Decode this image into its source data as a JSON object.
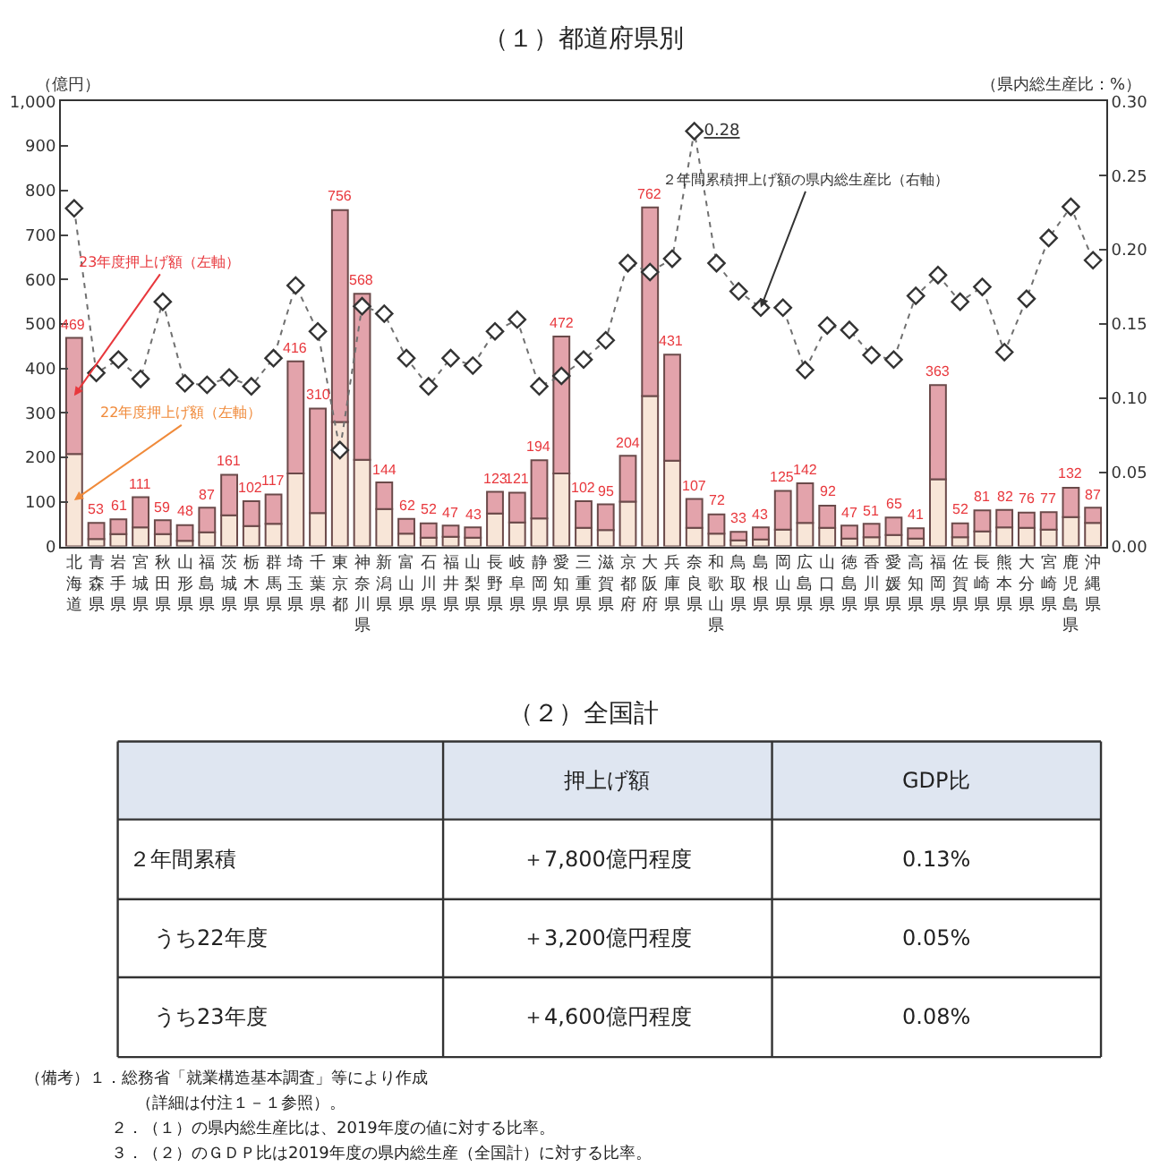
{
  "chart_data": {
    "type": "bar",
    "title": "（１）都道府県別",
    "ylabel": "（億円）",
    "y2label": "（県内総生産比：%）",
    "categories": [
      "北海道",
      "青森県",
      "岩手県",
      "宮城県",
      "秋田県",
      "山形県",
      "福島県",
      "茨城県",
      "栃木県",
      "群馬県",
      "埼玉県",
      "千葉県",
      "東京都",
      "神奈川県",
      "新潟県",
      "富山県",
      "石川県",
      "福井県",
      "山梨県",
      "長野県",
      "岐阜県",
      "静岡県",
      "愛知県",
      "三重県",
      "滋賀県",
      "京都府",
      "大阪府",
      "兵庫県",
      "奈良県",
      "和歌山県",
      "鳥取県",
      "島根県",
      "岡山県",
      "広島県",
      "山口県",
      "徳島県",
      "香川県",
      "愛媛県",
      "高知県",
      "福岡県",
      "佐賀県",
      "長崎県",
      "熊本県",
      "大分県",
      "宮崎県",
      "鹿児島県",
      "沖縄県"
    ],
    "stacked": true,
    "series": [
      {
        "name": "22年度押上げ額（左軸）",
        "color": "#f8e6d8",
        "values": [
          208,
          17,
          28,
          43,
          28,
          13,
          32,
          70,
          46,
          51,
          164,
          75,
          280,
          195,
          84,
          29,
          20,
          22,
          20,
          74,
          54,
          63,
          164,
          42,
          37,
          101,
          338,
          193,
          42,
          29,
          14,
          16,
          38,
          53,
          42,
          18,
          21,
          26,
          18,
          151,
          21,
          34,
          43,
          42,
          38,
          66,
          53
        ]
      },
      {
        "name": "23年度押上げ額（左軸）",
        "color": "#e3a3ab",
        "values": [
          261,
          36,
          33,
          68,
          31,
          35,
          55,
          91,
          56,
          66,
          252,
          235,
          476,
          373,
          60,
          33,
          32,
          25,
          23,
          49,
          67,
          131,
          308,
          60,
          58,
          103,
          424,
          238,
          65,
          43,
          19,
          27,
          87,
          89,
          50,
          29,
          30,
          39,
          23,
          212,
          31,
          47,
          39,
          34,
          39,
          66,
          34
        ]
      },
      {
        "name": "２年間累積押上げ額の県内総生産比（右軸）",
        "type": "line",
        "axis": "y2",
        "color": "#707070",
        "marker": "diamond",
        "line_style": "dotted",
        "values": [
          0.228,
          0.117,
          0.126,
          0.113,
          0.165,
          0.11,
          0.109,
          0.114,
          0.108,
          0.127,
          0.176,
          0.145,
          0.065,
          0.162,
          0.157,
          0.127,
          0.108,
          0.127,
          0.122,
          0.145,
          0.153,
          0.108,
          0.115,
          0.126,
          0.139,
          0.191,
          0.185,
          0.194,
          0.28,
          0.191,
          0.172,
          0.161,
          0.161,
          0.119,
          0.149,
          0.146,
          0.129,
          0.126,
          0.169,
          0.183,
          0.165,
          0.175,
          0.131,
          0.167,
          0.208,
          0.229,
          0.193
        ],
        "value_labels": [
          null,
          null,
          null,
          null,
          null,
          null,
          null,
          null,
          null,
          null,
          null,
          null,
          null,
          null,
          null,
          null,
          null,
          null,
          null,
          null,
          null,
          null,
          null,
          null,
          null,
          null,
          null,
          null,
          "0.28",
          null,
          null,
          null,
          null,
          null,
          null,
          null,
          null,
          null,
          null,
          null,
          null,
          null,
          null,
          null,
          null,
          null,
          null
        ]
      }
    ],
    "totals": [
      "469",
      "53",
      "61",
      "111",
      "59",
      "48",
      "87",
      "161",
      "102",
      "117",
      "416",
      "310",
      "756",
      "568",
      "144",
      "62",
      "52",
      "47",
      "43",
      "123",
      "121",
      "194",
      "472",
      "102",
      "95",
      "204",
      "762",
      "431",
      "107",
      "72",
      "33",
      "43",
      "125",
      "142",
      "92",
      "47",
      "51",
      "65",
      "41",
      "363",
      "52",
      "81",
      "82",
      "76",
      "77",
      "132",
      "87"
    ],
    "ylim": [
      0,
      1000
    ],
    "yticks": [
      0,
      100,
      200,
      300,
      400,
      500,
      600,
      700,
      800,
      900,
      {
        "value": 1000,
        "label": "1,000"
      }
    ],
    "y2lim": [
      0,
      0.3
    ],
    "y2ticks": [
      {
        "value": 0,
        "label": "0.00"
      },
      {
        "value": 0.05,
        "label": "0.05"
      },
      {
        "value": 0.1,
        "label": "0.10"
      },
      {
        "value": 0.15,
        "label": "0.15"
      },
      {
        "value": 0.2,
        "label": "0.20"
      },
      {
        "value": 0.25,
        "label": "0.25"
      },
      {
        "value": 0.3,
        "label": "0.30"
      }
    ],
    "legend": false,
    "annotations": [
      "（２）全国計",
      "押上げ額",
      "GDP比",
      "２年間累積",
      "＋7,800億円程度",
      "0.13%",
      "うち22年度",
      "＋3,200億円程度",
      "0.05%",
      "うち23年度",
      "＋4,600億円程度",
      "0.08%",
      "（備考）１．総務省「就業構造基本調査」等により作成",
      "（詳細は付注１－１参照）。",
      "２．（１）の県内総生産比は、2019年度の値に対する比率。",
      "３．（２）のＧＤＰ比は2019年度の県内総生産（全国計）に対する比率。"
    ]
  }
}
